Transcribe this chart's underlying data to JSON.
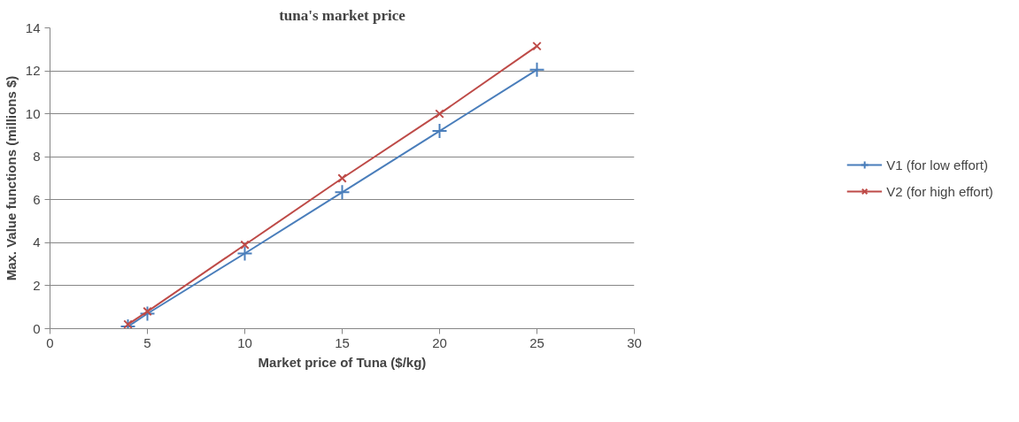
{
  "chart_data": {
    "type": "line",
    "title": "tuna's market price",
    "xlabel": "Market price of Tuna ($/kg)",
    "ylabel": "Max. Value functions (millions $)",
    "x": [
      4,
      5,
      10,
      15,
      20,
      25
    ],
    "series": [
      {
        "name": "V1 (for low effort)",
        "color": "#4a7ebb",
        "marker": "cross",
        "values": [
          0.1,
          0.7,
          3.5,
          6.35,
          9.2,
          12.05
        ]
      },
      {
        "name": "V2 (for high effort)",
        "color": "#be4b48",
        "marker": "x",
        "values": [
          0.2,
          0.8,
          3.9,
          7.0,
          10.0,
          13.15
        ]
      }
    ],
    "xlim": [
      0,
      30
    ],
    "xticks": [
      0,
      5,
      10,
      15,
      20,
      25,
      30
    ],
    "ylim": [
      0,
      14
    ],
    "yticks": [
      0,
      2,
      4,
      6,
      8,
      10,
      12,
      14
    ],
    "grid": "y",
    "legend": "right",
    "line_style": "solid"
  }
}
